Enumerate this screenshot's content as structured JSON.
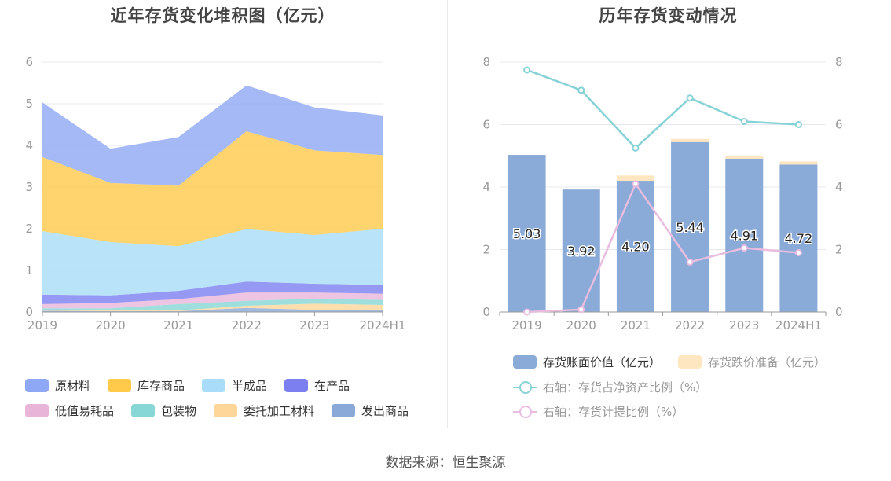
{
  "source_label": "数据来源：恒生聚源",
  "colors": {
    "原材料": "#8fa8f5",
    "库存商品": "#ffc94a",
    "半成品": "#a8dcf8",
    "在产品": "#7b7ff0",
    "低值易耗品": "#e8b5d9",
    "包装物": "#86d7d5",
    "委托加工材料": "#ffd699",
    "发出商品": "#8aa9d8",
    "bar_book": "#8aaad8",
    "bar_reserve": "#fde6c0",
    "line_net": "#86d2d6",
    "line_reserve": "#e8bde0",
    "grid": "#e6e8f0",
    "axis_text": "#999999"
  },
  "chart_data": [
    {
      "type": "area",
      "title": "近年存货变化堆积图（亿元）",
      "categories": [
        "2019",
        "2020",
        "2021",
        "2022",
        "2023",
        "2024H1"
      ],
      "y_ticks": [
        "0",
        "1",
        "2",
        "3",
        "4",
        "5",
        "6"
      ],
      "ylim": [
        0,
        6
      ],
      "stacked": true,
      "series": [
        {
          "name": "发出商品",
          "values": [
            0.03,
            0.02,
            0.02,
            0.1,
            0.05,
            0.05
          ]
        },
        {
          "name": "委托加工材料",
          "values": [
            0.02,
            0.02,
            0.02,
            0.05,
            0.15,
            0.12
          ]
        },
        {
          "name": "包装物",
          "values": [
            0.04,
            0.05,
            0.15,
            0.12,
            0.12,
            0.12
          ]
        },
        {
          "name": "低值易耗品",
          "values": [
            0.1,
            0.13,
            0.12,
            0.2,
            0.15,
            0.15
          ]
        },
        {
          "name": "在产品",
          "values": [
            0.23,
            0.18,
            0.2,
            0.26,
            0.21,
            0.21
          ]
        },
        {
          "name": "半成品",
          "values": [
            1.52,
            1.28,
            1.07,
            1.26,
            1.17,
            1.35
          ]
        },
        {
          "name": "库存商品",
          "values": [
            1.78,
            1.42,
            1.45,
            2.35,
            2.03,
            1.77
          ]
        },
        {
          "name": "原材料",
          "values": [
            1.31,
            0.82,
            1.17,
            1.1,
            1.03,
            0.95
          ]
        }
      ],
      "legend": [
        "原材料",
        "库存商品",
        "半成品",
        "在产品",
        "低值易耗品",
        "包装物",
        "委托加工材料",
        "发出商品"
      ],
      "legend_position": "bottom"
    },
    {
      "type": "bar",
      "title": "历年存货变动情况",
      "categories": [
        "2019",
        "2020",
        "2021",
        "2022",
        "2023",
        "2024H1"
      ],
      "y_left_ticks": [
        "0",
        "2",
        "4",
        "6",
        "8"
      ],
      "y_right_ticks": [
        "0",
        "2",
        "4",
        "6",
        "8"
      ],
      "ylim": [
        0,
        8
      ],
      "y2lim": [
        0,
        8
      ],
      "stacked": true,
      "series": [
        {
          "name": "存货账面价值（亿元）",
          "type": "bar",
          "values": [
            5.03,
            3.92,
            4.2,
            5.44,
            4.91,
            4.72
          ],
          "labels": [
            "5.03",
            "3.92",
            "4.20",
            "5.44",
            "4.91",
            "4.72"
          ]
        },
        {
          "name": "存货跌价准备（亿元）",
          "type": "bar",
          "values": [
            0.0,
            0.0,
            0.17,
            0.1,
            0.1,
            0.1
          ]
        },
        {
          "name": "右轴：存货占净资产比例（%）",
          "type": "line",
          "axis": "right",
          "values": [
            7.75,
            7.1,
            5.25,
            6.85,
            6.1,
            6.0
          ]
        },
        {
          "name": "右轴：存货计提比例（%）",
          "type": "line",
          "axis": "right",
          "values": [
            0.0,
            0.08,
            4.1,
            1.6,
            2.05,
            1.9
          ]
        }
      ],
      "legend_position": "bottom"
    }
  ]
}
